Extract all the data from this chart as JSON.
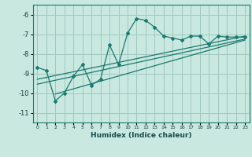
{
  "xlabel": "Humidex (Indice chaleur)",
  "ylabel": "",
  "xlim": [
    -0.5,
    23.5
  ],
  "ylim": [
    -11.5,
    -5.5
  ],
  "yticks": [
    -6,
    -7,
    -8,
    -9,
    -10,
    -11
  ],
  "xticks": [
    0,
    1,
    2,
    3,
    4,
    5,
    6,
    7,
    8,
    9,
    10,
    11,
    12,
    13,
    14,
    15,
    16,
    17,
    18,
    19,
    20,
    21,
    22,
    23
  ],
  "bg_color": "#c8e8e0",
  "grid_color": "#a0c8c0",
  "line_color": "#1a7a6e",
  "zigzag_x": [
    0,
    1,
    2,
    3,
    4,
    5,
    6,
    7,
    8,
    9,
    10,
    11,
    12,
    13,
    14,
    15,
    16,
    17,
    18,
    19,
    20,
    21,
    22,
    23
  ],
  "zigzag_y": [
    -8.7,
    -8.85,
    -10.4,
    -10.0,
    -9.15,
    -8.55,
    -9.6,
    -9.3,
    -7.55,
    -8.55,
    -6.95,
    -6.2,
    -6.3,
    -6.65,
    -7.1,
    -7.2,
    -7.3,
    -7.1,
    -7.1,
    -7.5,
    -7.1,
    -7.15,
    -7.15,
    -7.15
  ],
  "line1_x": [
    0,
    23
  ],
  "line1_y": [
    -9.3,
    -7.1
  ],
  "line2_x": [
    0,
    23
  ],
  "line2_y": [
    -9.55,
    -7.25
  ],
  "line3_x": [
    2,
    23
  ],
  "line3_y": [
    -10.05,
    -7.3
  ]
}
